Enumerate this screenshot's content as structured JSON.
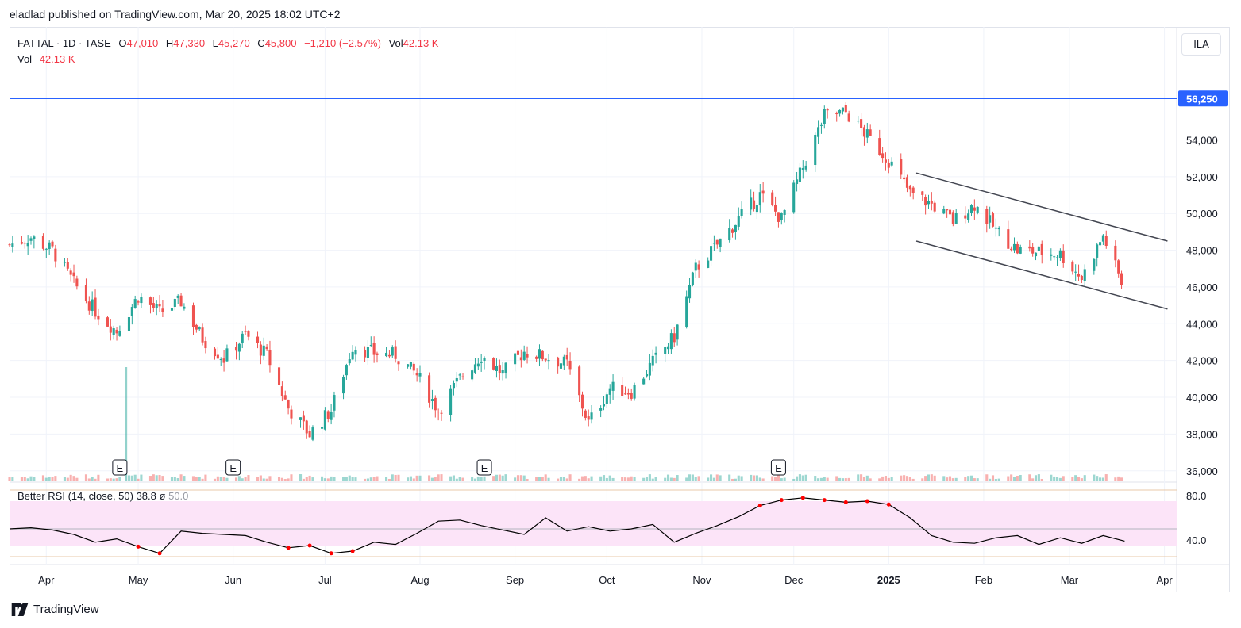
{
  "header": {
    "publisher": "eladlad published on TradingView.com, Mar 20, 2025 18:02 UTC+2"
  },
  "legend": {
    "symbol": "FATTAL · 1D · TASE",
    "open_label": "O",
    "open": "47,010",
    "high_label": "H",
    "high": "47,330",
    "low_label": "L",
    "low": "45,270",
    "close_label": "C",
    "close": "45,800",
    "change": "−1,210 (−2.57%)",
    "vol_label": "Vol",
    "vol": "42.13 K",
    "vol_row_label": "Vol",
    "vol_row_value": "42.13 K"
  },
  "currency": "ILA",
  "rsi_legend": {
    "title": "Better RSI (14, close, 50)",
    "value": "38.8",
    "sep": "ø",
    "mid": "50.0"
  },
  "footer": {
    "brand": "TradingView"
  },
  "colors": {
    "up": "#26a69a",
    "down": "#ef5350",
    "hline": "#2962ff",
    "rsi_band": "#fce4f8",
    "rsi_line": "#000000"
  },
  "chart_data": {
    "type": "candlestick",
    "symbol": "FATTAL",
    "interval": "1D",
    "exchange": "TASE",
    "price_axis_ticks": [
      "36,000",
      "38,000",
      "40,000",
      "42,000",
      "44,000",
      "46,000",
      "48,000",
      "50,000",
      "52,000",
      "54,000"
    ],
    "price_range": [
      35300,
      57600
    ],
    "horizontal_line": {
      "value": 56250,
      "label": "56,250"
    },
    "x_axis_labels": [
      "Apr",
      "May",
      "Jun",
      "Jul",
      "Aug",
      "Sep",
      "Oct",
      "Nov",
      "Dec",
      "2025",
      "Feb",
      "Mar",
      "Apr"
    ],
    "x_axis_bold": [
      "2025"
    ],
    "earnings_marker": "E",
    "earnings_dates": [
      "2024-04-25",
      "2024-06-01",
      "2024-08-22",
      "2024-11-26"
    ],
    "trend_channel": {
      "upper": [
        {
          "date": "2025-01-10",
          "value": 52200
        },
        {
          "date": "2025-04-02",
          "value": 48500
        }
      ],
      "lower": [
        {
          "date": "2025-01-10",
          "value": 48500
        },
        {
          "date": "2025-04-02",
          "value": 44800
        }
      ]
    },
    "close_series": {
      "dates": [
        "2024-03-20",
        "2024-03-27",
        "2024-04-03",
        "2024-04-10",
        "2024-04-17",
        "2024-04-24",
        "2024-05-01",
        "2024-05-08",
        "2024-05-15",
        "2024-05-22",
        "2024-05-29",
        "2024-06-05",
        "2024-06-12",
        "2024-06-19",
        "2024-06-26",
        "2024-07-03",
        "2024-07-10",
        "2024-07-17",
        "2024-07-24",
        "2024-07-31",
        "2024-08-07",
        "2024-08-14",
        "2024-08-21",
        "2024-08-28",
        "2024-09-04",
        "2024-09-11",
        "2024-09-18",
        "2024-09-25",
        "2024-10-02",
        "2024-10-09",
        "2024-10-16",
        "2024-10-23",
        "2024-10-30",
        "2024-11-06",
        "2024-11-13",
        "2024-11-20",
        "2024-11-27",
        "2024-12-04",
        "2024-12-11",
        "2024-12-18",
        "2024-12-25",
        "2025-01-01",
        "2025-01-08",
        "2025-01-15",
        "2025-01-22",
        "2025-01-29",
        "2025-02-05",
        "2025-02-12",
        "2025-02-19",
        "2025-02-26",
        "2025-03-05",
        "2025-03-12",
        "2025-03-19"
      ],
      "values": [
        48300,
        48700,
        48000,
        46200,
        44700,
        43600,
        45500,
        44600,
        45200,
        43200,
        42100,
        43400,
        42300,
        39400,
        38000,
        39300,
        42800,
        42400,
        42300,
        41200,
        39300,
        41000,
        42300,
        41300,
        42500,
        42200,
        41800,
        38600,
        40500,
        40300,
        41900,
        43300,
        47000,
        48300,
        49700,
        51000,
        49700,
        52500,
        55300,
        55500,
        54200,
        52900,
        51100,
        50500,
        49600,
        50500,
        49100,
        48000,
        47900,
        47800,
        46500,
        48800,
        45800
      ]
    },
    "volume_spike": {
      "date": "2024-04-27",
      "value": "tall"
    },
    "rsi": {
      "params": "14, close, 50",
      "axis_ticks": [
        "80.0",
        "40.0"
      ],
      "range": [
        25,
        85
      ],
      "band": [
        35,
        75
      ],
      "mid": 50,
      "values": [
        50,
        51,
        49,
        45,
        38,
        41,
        34,
        28,
        48,
        46,
        45,
        44,
        38,
        33,
        35,
        28,
        30,
        38,
        36,
        46,
        57,
        58,
        53,
        49,
        45,
        60,
        48,
        52,
        48,
        50,
        54,
        38,
        46,
        53,
        61,
        71,
        76,
        78,
        76,
        74,
        75,
        72,
        60,
        44,
        38,
        37,
        42,
        44,
        36,
        42,
        37,
        44,
        39
      ]
    }
  }
}
